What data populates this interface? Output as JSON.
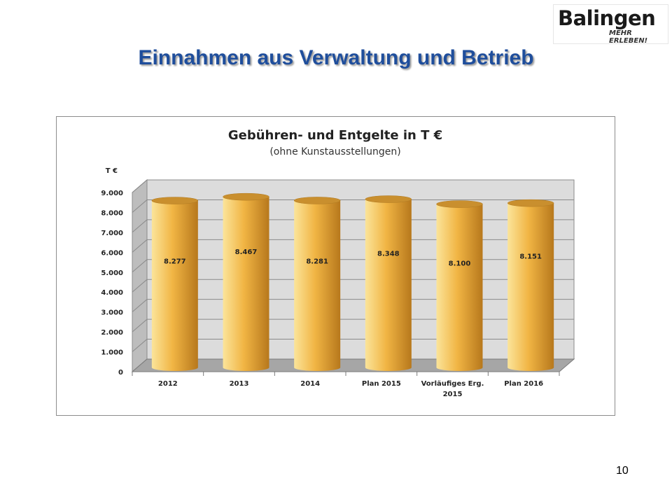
{
  "slide": {
    "title": "Einnahmen aus Verwaltung und Betrieb",
    "page_number": "10"
  },
  "logo": {
    "name": "Balingen",
    "tagline": "MEHR ERLEBEN!"
  },
  "colors": {
    "title": "#1f4e9c",
    "bar_light": "#fbe49a",
    "bar_mid": "#f1b544",
    "bar_dark": "#b7781c",
    "wall": "#dcdcdc",
    "floor": "#a6a6a6",
    "gridline": "#8a8a8a"
  },
  "chart_data": {
    "type": "bar",
    "style": "3d-cylinder",
    "title": "Gebühren- und Entgelte in T €",
    "subtitle": "(ohne Kunstausstellungen)",
    "ylabel": "T €",
    "ylim": [
      0,
      9000
    ],
    "yticks": [
      0,
      1000,
      2000,
      3000,
      4000,
      5000,
      6000,
      7000,
      8000,
      9000
    ],
    "ytick_labels": [
      "0",
      "1.000",
      "2.000",
      "3.000",
      "4.000",
      "5.000",
      "6.000",
      "7.000",
      "8.000",
      "9.000"
    ],
    "categories": [
      [
        "2012"
      ],
      [
        "2013"
      ],
      [
        "2014"
      ],
      [
        "Plan 2015"
      ],
      [
        "Vorläufiges Erg.",
        "2015"
      ],
      [
        "Plan 2016"
      ]
    ],
    "values": [
      8277,
      8467,
      8281,
      8348,
      8100,
      8151
    ],
    "value_labels": [
      "8.277",
      "8.467",
      "8.281",
      "8.348",
      "8.100",
      "8.151"
    ],
    "grid": true,
    "legend": "none"
  }
}
